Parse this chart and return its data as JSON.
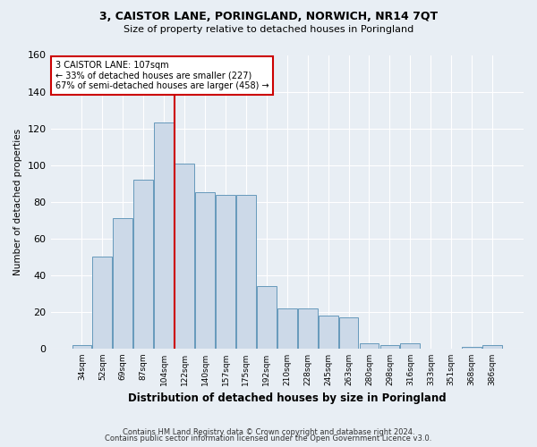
{
  "title": "3, CAISTOR LANE, PORINGLAND, NORWICH, NR14 7QT",
  "subtitle": "Size of property relative to detached houses in Poringland",
  "xlabel": "Distribution of detached houses by size in Poringland",
  "ylabel": "Number of detached properties",
  "bar_color": "#ccd9e8",
  "bar_edge_color": "#6699bb",
  "categories": [
    "34sqm",
    "52sqm",
    "69sqm",
    "87sqm",
    "104sqm",
    "122sqm",
    "140sqm",
    "157sqm",
    "175sqm",
    "192sqm",
    "210sqm",
    "228sqm",
    "245sqm",
    "263sqm",
    "280sqm",
    "298sqm",
    "316sqm",
    "333sqm",
    "351sqm",
    "368sqm",
    "386sqm"
  ],
  "values": [
    2,
    50,
    71,
    92,
    123,
    101,
    85,
    84,
    84,
    34,
    22,
    22,
    18,
    17,
    3,
    2,
    3,
    0,
    0,
    1,
    2
  ],
  "ylim": [
    0,
    160
  ],
  "yticks": [
    0,
    20,
    40,
    60,
    80,
    100,
    120,
    140,
    160
  ],
  "vline_index": 4.5,
  "annotation_text": "3 CAISTOR LANE: 107sqm\n← 33% of detached houses are smaller (227)\n67% of semi-detached houses are larger (458) →",
  "annotation_box_color": "#ffffff",
  "annotation_box_edge": "#cc0000",
  "vline_color": "#cc0000",
  "footer1": "Contains HM Land Registry data © Crown copyright and database right 2024.",
  "footer2": "Contains public sector information licensed under the Open Government Licence v3.0.",
  "bg_color": "#e8eef4",
  "grid_color": "#ffffff"
}
